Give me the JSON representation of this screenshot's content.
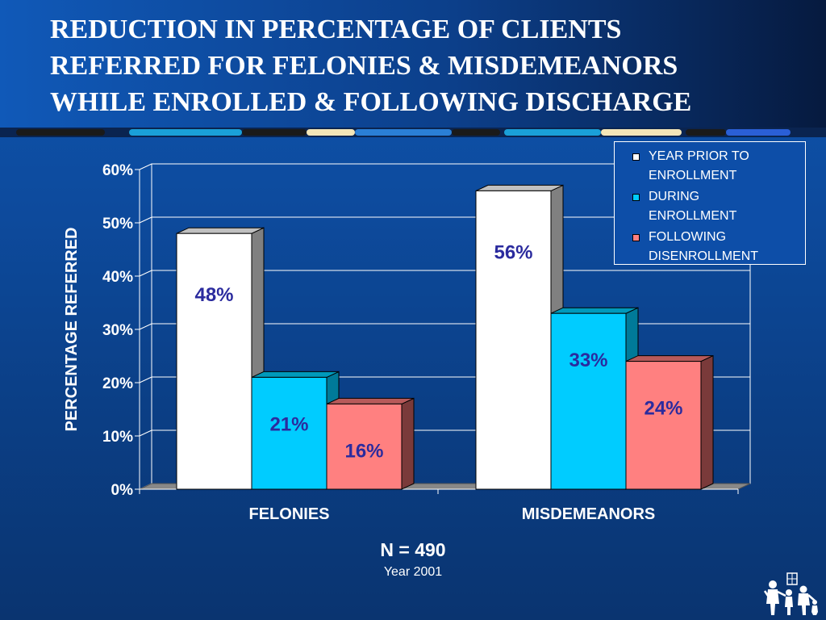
{
  "slide": {
    "title_lines": [
      "REDUCTION IN PERCENTAGE OF CLIENTS",
      "REFERRED FOR FELONIES & MISDEMEANORS",
      "WHILE ENROLLED & FOLLOWING DISCHARGE"
    ],
    "n_count": "N = 490",
    "year": "Year 2001"
  },
  "chart_data": {
    "type": "bar",
    "title": "",
    "xlabel": "",
    "ylabel": "PERCENTAGE REFERRED",
    "categories": [
      "FELONIES",
      "MISDEMEANORS"
    ],
    "ylim": [
      0,
      60
    ],
    "yticks": [
      "0%",
      "10%",
      "20%",
      "30%",
      "40%",
      "50%",
      "60%"
    ],
    "grid": true,
    "legend_position": "top-right",
    "series": [
      {
        "name": "YEAR PRIOR TO ENROLLMENT",
        "name_lines": [
          "YEAR PRIOR TO",
          "ENROLLMENT"
        ],
        "values": [
          48,
          56
        ],
        "labels": [
          "48%",
          "56%"
        ],
        "color": "#ffffff",
        "side_color": "#808080",
        "top_color": "#c0c0c0"
      },
      {
        "name": "DURING ENROLLMENT",
        "name_lines": [
          "DURING",
          "ENROLLMENT"
        ],
        "values": [
          21,
          33
        ],
        "labels": [
          "21%",
          "33%"
        ],
        "color": "#00ccff",
        "side_color": "#007a99",
        "top_color": "#0099bb"
      },
      {
        "name": "FOLLOWING DISENROLLMENT",
        "name_lines": [
          "FOLLOWING",
          "DISENROLLMENT"
        ],
        "values": [
          16,
          24
        ],
        "labels": [
          "16%",
          "24%"
        ],
        "color": "#ff8080",
        "side_color": "#7a3a3a",
        "top_color": "#b85a5a"
      }
    ]
  }
}
